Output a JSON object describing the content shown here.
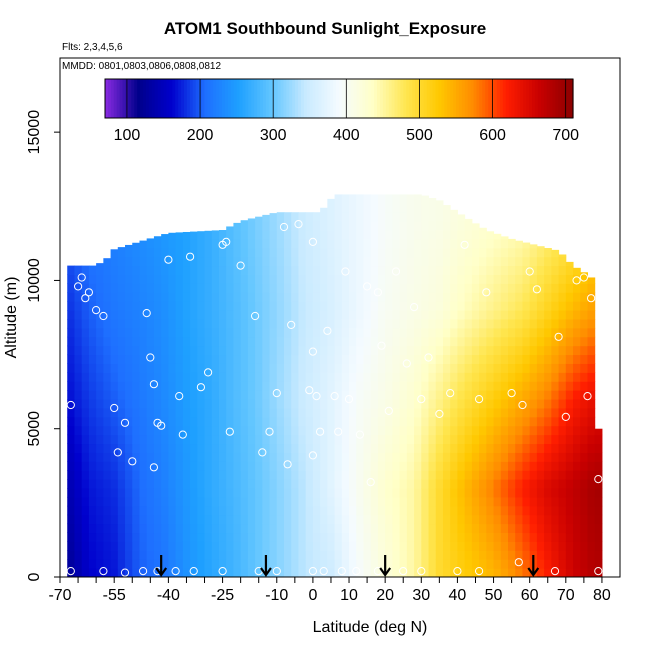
{
  "chart_data": {
    "type": "heatmap",
    "title": "ATOM1 Southbound Sunlight_Exposure",
    "annotations": [
      "Flts: 2,3,4,5,6",
      "MMDD: 0801,0803,0806,0808,0812"
    ],
    "xlabel": "Latitude (deg N)",
    "ylabel": "Altitude (m)",
    "xlim": [
      -70,
      85
    ],
    "ylim": [
      0,
      17500
    ],
    "x_ticks": [
      -70,
      -55,
      -40,
      -25,
      -10,
      0,
      10,
      20,
      30,
      40,
      50,
      60,
      70,
      80
    ],
    "y_ticks": [
      0,
      5000,
      10000,
      15000
    ],
    "colorbar": {
      "range": [
        70,
        710
      ],
      "ticks": [
        100,
        200,
        300,
        400,
        500,
        600,
        700
      ],
      "colors": [
        "#8a2be2",
        "#00008b",
        "#0000cd",
        "#1e6fff",
        "#1ea0ff",
        "#63c6ff",
        "#c8eaff",
        "#f5fbff",
        "#ffffc8",
        "#ffe650",
        "#ffc800",
        "#ff8c00",
        "#ff1e00",
        "#c80000",
        "#8b0000"
      ]
    },
    "field": {
      "lat_nodes": [
        -68,
        -62,
        -55,
        -48,
        -42,
        -35,
        -28,
        -22,
        -15,
        -8,
        -2,
        5,
        12,
        20,
        28,
        35,
        42,
        50,
        58,
        65,
        72,
        78
      ],
      "alt_nodes": [
        0,
        3000,
        6000,
        9000,
        12000
      ],
      "values": [
        [
          120,
          160,
          170,
          200,
          210,
          240,
          260,
          275,
          300,
          320,
          340,
          350,
          390,
          420,
          450,
          500,
          520,
          540,
          580,
          620,
          660,
          680
        ],
        [
          140,
          170,
          180,
          205,
          220,
          245,
          265,
          280,
          300,
          320,
          340,
          370,
          400,
          430,
          450,
          500,
          540,
          580,
          620,
          650,
          670,
          690
        ],
        [
          165,
          185,
          200,
          215,
          230,
          250,
          265,
          285,
          305,
          330,
          350,
          370,
          395,
          410,
          430,
          460,
          490,
          520,
          550,
          580,
          620,
          640
        ],
        [
          180,
          200,
          215,
          225,
          235,
          255,
          270,
          285,
          305,
          325,
          345,
          360,
          380,
          400,
          410,
          420,
          440,
          460,
          480,
          510,
          540,
          560
        ],
        [
          200,
          215,
          225,
          235,
          245,
          255,
          270,
          290,
          310,
          330,
          350,
          365,
          380,
          395,
          405,
          410,
          420,
          430,
          440,
          460,
          480,
          500
        ]
      ],
      "top_profile": [
        [
          -68,
          10500
        ],
        [
          -60,
          10500
        ],
        [
          -57,
          10750
        ],
        [
          -55,
          11050
        ],
        [
          -40,
          11600
        ],
        [
          -25,
          11700
        ],
        [
          -20,
          12000
        ],
        [
          -10,
          12300
        ],
        [
          2,
          12300
        ],
        [
          6,
          12900
        ],
        [
          30,
          12900
        ],
        [
          35,
          12700
        ],
        [
          40,
          12300
        ],
        [
          48,
          11700
        ],
        [
          55,
          11400
        ],
        [
          68,
          11000
        ],
        [
          72,
          10500
        ],
        [
          76,
          10200
        ],
        [
          78,
          10000
        ],
        [
          79,
          5000
        ],
        [
          80,
          0
        ]
      ]
    },
    "observations": [
      [
        -67,
        200
      ],
      [
        -58,
        200
      ],
      [
        -52,
        150
      ],
      [
        -47,
        200
      ],
      [
        -43,
        200
      ],
      [
        -38,
        200
      ],
      [
        -33,
        200
      ],
      [
        -25,
        200
      ],
      [
        -15,
        200
      ],
      [
        -10,
        200
      ],
      [
        0,
        200
      ],
      [
        3,
        200
      ],
      [
        8,
        200
      ],
      [
        12,
        200
      ],
      [
        18,
        200
      ],
      [
        25,
        200
      ],
      [
        30,
        200
      ],
      [
        40,
        200
      ],
      [
        46,
        200
      ],
      [
        57,
        500
      ],
      [
        67,
        200
      ],
      [
        79,
        200
      ],
      [
        -67,
        5800
      ],
      [
        -65,
        9800
      ],
      [
        -64,
        10100
      ],
      [
        -63,
        9400
      ],
      [
        -62,
        9600
      ],
      [
        -60,
        9000
      ],
      [
        -58,
        8800
      ],
      [
        -55,
        5700
      ],
      [
        -54,
        4200
      ],
      [
        -52,
        5200
      ],
      [
        -50,
        3900
      ],
      [
        -46,
        8900
      ],
      [
        -45,
        7400
      ],
      [
        -44,
        6500
      ],
      [
        -44,
        3700
      ],
      [
        -43,
        5200
      ],
      [
        -42,
        5100
      ],
      [
        -40,
        10700
      ],
      [
        -37,
        6100
      ],
      [
        -36,
        4800
      ],
      [
        -34,
        10800
      ],
      [
        -31,
        6400
      ],
      [
        -29,
        6900
      ],
      [
        -25,
        11200
      ],
      [
        -24,
        11300
      ],
      [
        -23,
        4900
      ],
      [
        -20,
        10500
      ],
      [
        -16,
        8800
      ],
      [
        -14,
        4200
      ],
      [
        -12,
        4900
      ],
      [
        -10,
        6200
      ],
      [
        -8,
        11800
      ],
      [
        -7,
        3800
      ],
      [
        -6,
        8500
      ],
      [
        -4,
        11900
      ],
      [
        -1,
        6300
      ],
      [
        0,
        11300
      ],
      [
        0,
        7600
      ],
      [
        0,
        4100
      ],
      [
        1,
        6100
      ],
      [
        2,
        4900
      ],
      [
        4,
        8300
      ],
      [
        6,
        6100
      ],
      [
        7,
        4900
      ],
      [
        9,
        10300
      ],
      [
        10,
        6000
      ],
      [
        13,
        4800
      ],
      [
        15,
        9800
      ],
      [
        16,
        3200
      ],
      [
        18,
        9600
      ],
      [
        19,
        7800
      ],
      [
        21,
        5600
      ],
      [
        23,
        10300
      ],
      [
        26,
        7200
      ],
      [
        28,
        9100
      ],
      [
        30,
        6000
      ],
      [
        32,
        7400
      ],
      [
        35,
        5500
      ],
      [
        38,
        6200
      ],
      [
        42,
        11200
      ],
      [
        46,
        6000
      ],
      [
        48,
        9600
      ],
      [
        55,
        6200
      ],
      [
        58,
        5800
      ],
      [
        60,
        10300
      ],
      [
        62,
        9700
      ],
      [
        64,
        11300
      ],
      [
        68,
        8100
      ],
      [
        70,
        5400
      ],
      [
        72,
        11400
      ],
      [
        73,
        10000
      ],
      [
        75,
        10100
      ],
      [
        76,
        6100
      ],
      [
        77,
        9400
      ],
      [
        79,
        3300
      ]
    ],
    "flight_markers_lat": [
      -42,
      -13,
      20,
      61
    ]
  }
}
